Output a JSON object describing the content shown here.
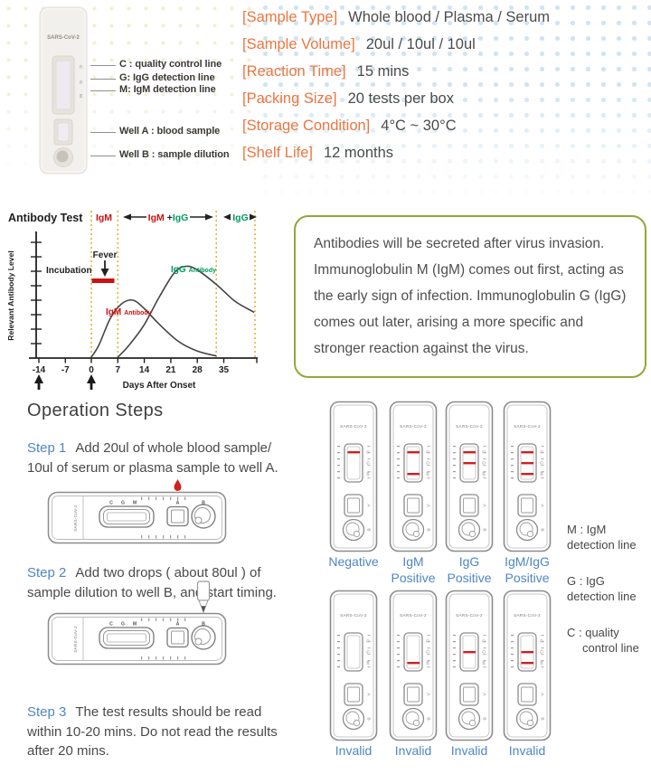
{
  "colors": {
    "accent_orange": "#EC7540",
    "step_blue": "#4F86C6",
    "result_blue": "#4F86C6",
    "test_line_red": "#CF1F1F",
    "igm_red": "#CC1111",
    "igg_green": "#009960",
    "box_border_green": "#93A737",
    "phase_dash_yellow": "#E4B23A",
    "body_text": "#4A4A4A"
  },
  "header": {
    "cassette": {
      "brand": "SARS-CoV-2",
      "callouts": [
        "C : quality control line",
        "G: IgG detection line",
        "M: IgM detection line",
        "Well A : blood sample",
        "Well B : sample dilution"
      ]
    },
    "specs": [
      {
        "label": "[Sample Type]",
        "value": "Whole blood / Plasma / Serum"
      },
      {
        "label": "[Sample Volume]",
        "value": "20ul / 10ul / 10ul"
      },
      {
        "label": "[Reaction Time]",
        "value": "15 mins"
      },
      {
        "label": "[Packing Size]",
        "value": "20 tests per box"
      },
      {
        "label": "[Storage Condition]",
        "value": "4°C ~ 30°C"
      },
      {
        "label": "[Shelf Life]",
        "value": "12 months"
      }
    ]
  },
  "chart_data": {
    "type": "line",
    "title": "Antibody Test",
    "xlabel": "Days After Onset",
    "ylabel": "Relevant Antibody Level",
    "x_ticks": [
      -14,
      -7,
      0,
      7,
      14,
      21,
      28,
      35
    ],
    "x_range": [
      -16,
      45
    ],
    "grid": false,
    "legend_position": "inline",
    "phases": [
      {
        "label": "IgM",
        "from": 0,
        "to": 7
      },
      {
        "label": "IgM + IgG",
        "from": 7,
        "to": 33
      },
      {
        "label": "IgG",
        "from": 33,
        "to": 43
      }
    ],
    "annotations": [
      {
        "text": "Incubation",
        "x": -10
      },
      {
        "text": "Fever",
        "x": 3
      }
    ],
    "onset_arrows_x": [
      -14,
      0
    ],
    "series": [
      {
        "name": "IgM Antibody",
        "label_color": "#CC1111",
        "days": [
          0,
          2,
          5,
          8,
          11,
          14,
          18,
          23,
          28,
          33
        ],
        "levels": [
          0,
          10,
          32,
          44,
          47,
          40,
          27,
          13,
          5,
          1
        ]
      },
      {
        "name": "IgG Antibody",
        "label_color": "#009960",
        "days": [
          7,
          10,
          14,
          18,
          22,
          25,
          28,
          33,
          38,
          43
        ],
        "levels": [
          0,
          10,
          27,
          50,
          70,
          75,
          72,
          60,
          46,
          37
        ]
      }
    ]
  },
  "info_box": {
    "text": "Antibodies will be secreted after virus invasion. Immunoglobulin M (IgM) comes out first, acting as the early sign of infection. Immunoglobulin G (IgG) comes out later, arising a more specific and stronger reaction against the virus."
  },
  "operation": {
    "title": "Operation Steps",
    "steps": [
      {
        "label": "Step 1",
        "text": "Add 20ul of whole blood sample/ 10ul of serum or plasma sample to well A."
      },
      {
        "label": "Step 2",
        "text": "Add two drops ( about 80ul ) of sample dilution to well B, and start timing."
      },
      {
        "label": "Step 3",
        "text": "The test results should be read within 10-20 mins. Do not read the results after 20 mins."
      }
    ],
    "diagram_labels": {
      "brand": "SARS-CoV-2",
      "window": [
        "C",
        "G",
        "M"
      ],
      "wells": [
        "A",
        "B"
      ]
    }
  },
  "results": {
    "brand": "SARS-CoV-2",
    "items": [
      {
        "label": "Negative",
        "lines": [
          "C"
        ]
      },
      {
        "label": "IgM Positive",
        "lines": [
          "C",
          "M"
        ]
      },
      {
        "label": "IgG Positive",
        "lines": [
          "C",
          "G"
        ]
      },
      {
        "label": "IgM/IgG Positive",
        "lines": [
          "C",
          "G",
          "M"
        ]
      },
      {
        "label": "Invalid",
        "lines": []
      },
      {
        "label": "Invalid",
        "lines": [
          "M"
        ]
      },
      {
        "label": "Invalid",
        "lines": [
          "G"
        ]
      },
      {
        "label": "Invalid",
        "lines": [
          "G",
          "M"
        ]
      }
    ],
    "legend": [
      {
        "line1": "M : IgM",
        "line2": "detection line"
      },
      {
        "line1": "G : IgG",
        "line2": "detection line"
      },
      {
        "line1": "C : quality",
        "line2": "control line"
      }
    ]
  }
}
